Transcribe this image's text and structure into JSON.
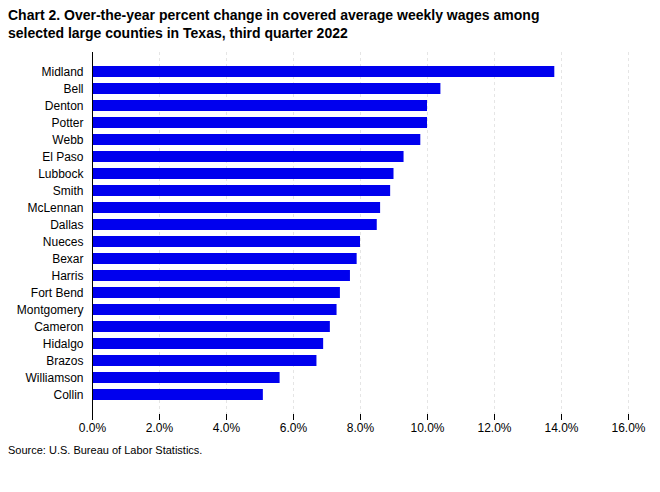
{
  "chart_data": {
    "type": "bar",
    "orientation": "horizontal",
    "title": "Chart 2. Over-the-year percent change in covered average weekly wages among",
    "subtitle": "selected large counties in Texas, third quarter 2022",
    "annotations": [
      "Source: U.S. Bureau of Labor Statistics."
    ],
    "categories": [
      "Midland",
      "Bell",
      "Denton",
      "Potter",
      "Webb",
      "El Paso",
      "Lubbock",
      "Smith",
      "McLennan",
      "Dallas",
      "Nueces",
      "Bexar",
      "Harris",
      "Fort Bend",
      "Montgomery",
      "Cameron",
      "Hidalgo",
      "Brazos",
      "Williamson",
      "Collin"
    ],
    "values": [
      0.138,
      0.104,
      0.1,
      0.1,
      0.098,
      0.093,
      0.09,
      0.089,
      0.086,
      0.085,
      0.08,
      0.079,
      0.077,
      0.074,
      0.073,
      0.071,
      0.069,
      0.067,
      0.056,
      0.051
    ],
    "color": "#0000ee",
    "xlim": [
      0,
      0.16
    ],
    "xticks": [
      {
        "value": 0.0,
        "label": "0.0%"
      },
      {
        "value": 0.02,
        "label": "2.0%"
      },
      {
        "value": 0.04,
        "label": "4.0%"
      },
      {
        "value": 0.06,
        "label": "6.0%"
      },
      {
        "value": 0.08,
        "label": "8.0%"
      },
      {
        "value": 0.1,
        "label": "10.0%"
      },
      {
        "value": 0.12,
        "label": "12.0%"
      },
      {
        "value": 0.14,
        "label": "14.0%"
      },
      {
        "value": 0.16,
        "label": "16.0%"
      }
    ],
    "grid": true
  }
}
